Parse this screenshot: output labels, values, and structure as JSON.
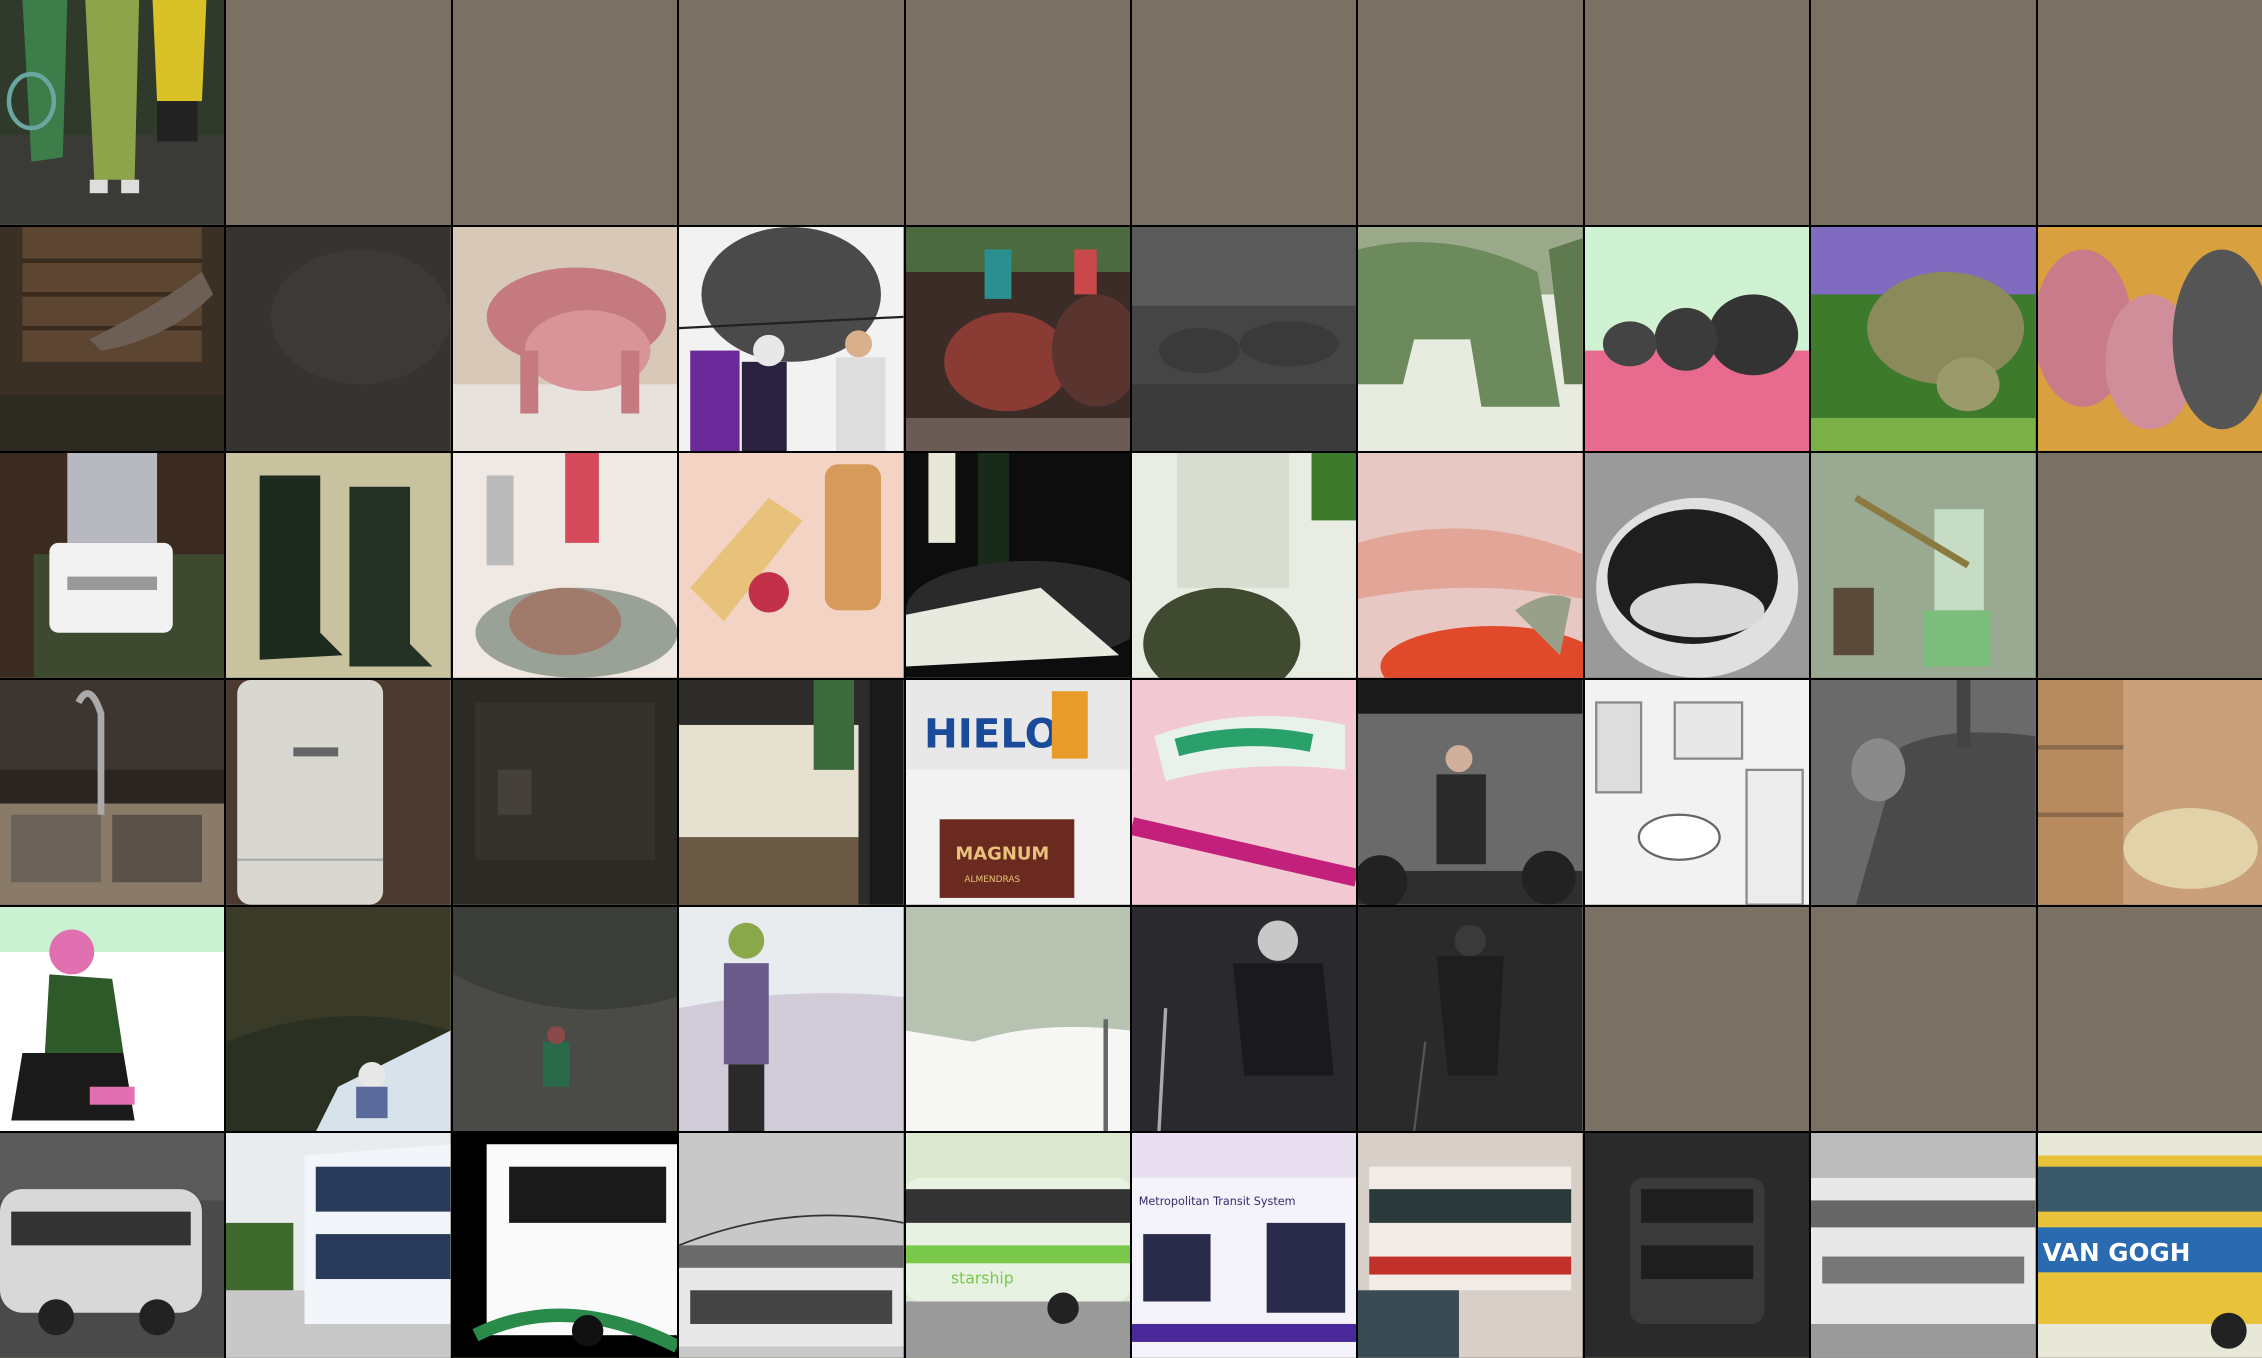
{
  "grid": {
    "rows": 6,
    "columns": 10,
    "placeholder_color": "#7a7064"
  },
  "rows": [
    {
      "theme": "tennis",
      "filled": 1
    },
    {
      "theme": "elephants",
      "filled": 10
    },
    {
      "theme": "food-and-objects",
      "filled": 9
    },
    {
      "theme": "indoor-rooms",
      "filled": 10
    },
    {
      "theme": "skiing",
      "filled": 7
    },
    {
      "theme": "buses",
      "filled": 10
    }
  ],
  "visible_text": {
    "hielo_sign": "HIELO",
    "magnum_box": "MAGNUM",
    "magnum_sub": "ALMENDRAS",
    "bus_side": "Metropolitan Transit System",
    "van_gogh": "VAN GOGH",
    "starship": "starship"
  }
}
